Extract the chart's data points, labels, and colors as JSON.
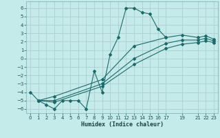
{
  "xlabel": "Humidex (Indice chaleur)",
  "bg_color": "#c5eaea",
  "grid_color": "#aecece",
  "line_color": "#1a6b6b",
  "xlim": [
    -0.5,
    23.5
  ],
  "ylim": [
    -6.5,
    6.8
  ],
  "xticks": [
    0,
    1,
    2,
    3,
    4,
    5,
    6,
    7,
    8,
    9,
    10,
    11,
    12,
    13,
    14,
    15,
    16,
    17,
    19,
    21,
    22,
    23
  ],
  "yticks": [
    -6,
    -5,
    -4,
    -3,
    -2,
    -1,
    0,
    1,
    2,
    3,
    4,
    5,
    6
  ],
  "series1_x": [
    0,
    1,
    2,
    3,
    4,
    5,
    6,
    7,
    8,
    9,
    10,
    11,
    12,
    13,
    14,
    15,
    16,
    17
  ],
  "series1_y": [
    -4,
    -5,
    -5.5,
    -6,
    -5,
    -5,
    -5,
    -6,
    -1.5,
    -4,
    0.5,
    2.5,
    6,
    6,
    5.5,
    5.3,
    3.5,
    2.5
  ],
  "series2_x": [
    1,
    3,
    9,
    13,
    17,
    19,
    21,
    22,
    23
  ],
  "series2_y": [
    -5,
    -4.5,
    -2.5,
    1.5,
    2.5,
    2.8,
    2.5,
    2.7,
    2.3
  ],
  "series3_x": [
    1,
    3,
    9,
    13,
    17,
    19,
    21,
    22,
    23
  ],
  "series3_y": [
    -5,
    -5.0,
    -3.0,
    0.0,
    1.8,
    2.2,
    2.2,
    2.4,
    2.1
  ],
  "series4_x": [
    1,
    3,
    9,
    13,
    17,
    19,
    21,
    22,
    23
  ],
  "series4_y": [
    -5,
    -5.2,
    -3.3,
    -0.7,
    1.2,
    1.7,
    1.9,
    2.1,
    1.9
  ]
}
